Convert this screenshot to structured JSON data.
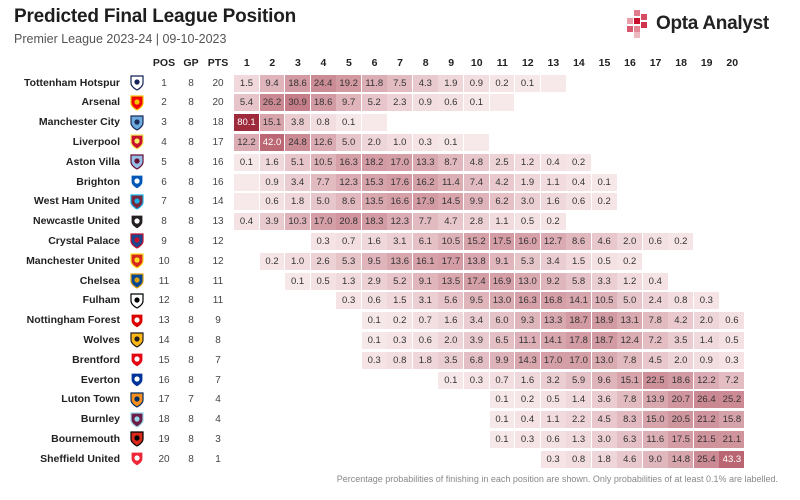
{
  "header": {
    "title": "Predicted Final League Position",
    "subtitle": "Premier League 2023-24 | 09-10-2023",
    "brand": "Opta Analyst"
  },
  "footnote": "Percentage probabilities of finishing in each position are shown. Only probabilities of at least 0.1% are labelled.",
  "colors": {
    "low": "#f8eaec",
    "high": "#9e2b3c",
    "text_dark": "#333333",
    "text_light": "#ffffff",
    "brand_accent": "#c8102e"
  },
  "chart_data": {
    "type": "heatmap",
    "title": "Predicted Final League Position",
    "stat_columns": [
      "POS",
      "GP",
      "PTS"
    ],
    "positions": [
      1,
      2,
      3,
      4,
      5,
      6,
      7,
      8,
      9,
      10,
      11,
      12,
      13,
      14,
      15,
      16,
      17,
      18,
      19,
      20
    ],
    "value_unit": "percent",
    "label_threshold": 0.1,
    "teams": [
      {
        "name": "Tottenham Hotspur",
        "crest": "tottenham-crest",
        "pos": 1,
        "gp": 8,
        "pts": 20,
        "probs": [
          1.5,
          9.4,
          18.6,
          24.4,
          19.2,
          11.8,
          7.5,
          4.3,
          1.9,
          0.9,
          0.2,
          0.1,
          0.05,
          null,
          null,
          null,
          null,
          null,
          null,
          null
        ]
      },
      {
        "name": "Arsenal",
        "crest": "arsenal-crest",
        "pos": 2,
        "gp": 8,
        "pts": 20,
        "probs": [
          5.4,
          26.2,
          30.9,
          18.6,
          9.7,
          5.2,
          2.3,
          0.9,
          0.6,
          0.1,
          0.05,
          null,
          null,
          null,
          null,
          null,
          null,
          null,
          null,
          null
        ]
      },
      {
        "name": "Manchester City",
        "crest": "man-city-crest",
        "pos": 3,
        "gp": 8,
        "pts": 18,
        "probs": [
          80.1,
          15.1,
          3.8,
          0.8,
          0.1,
          0.05,
          null,
          null,
          null,
          null,
          null,
          null,
          null,
          null,
          null,
          null,
          null,
          null,
          null,
          null
        ]
      },
      {
        "name": "Liverpool",
        "crest": "liverpool-crest",
        "pos": 4,
        "gp": 8,
        "pts": 17,
        "probs": [
          12.2,
          42.0,
          24.8,
          12.6,
          5.0,
          2.0,
          1.0,
          0.3,
          0.1,
          0.05,
          null,
          null,
          null,
          null,
          null,
          null,
          null,
          null,
          null,
          null
        ]
      },
      {
        "name": "Aston Villa",
        "crest": "aston-villa-crest",
        "pos": 5,
        "gp": 8,
        "pts": 16,
        "probs": [
          0.1,
          1.6,
          5.1,
          10.5,
          16.3,
          18.2,
          17.0,
          13.3,
          8.7,
          4.8,
          2.5,
          1.2,
          0.4,
          0.2,
          null,
          null,
          null,
          null,
          null,
          null
        ]
      },
      {
        "name": "Brighton",
        "crest": "brighton-crest",
        "pos": 6,
        "gp": 8,
        "pts": 16,
        "probs": [
          0.05,
          0.9,
          3.4,
          7.7,
          12.3,
          15.3,
          17.6,
          16.2,
          11.4,
          7.4,
          4.2,
          1.9,
          1.1,
          0.4,
          0.1,
          null,
          null,
          null,
          null,
          null
        ]
      },
      {
        "name": "West Ham United",
        "crest": "west-ham-crest",
        "pos": 7,
        "gp": 8,
        "pts": 14,
        "probs": [
          0.05,
          0.6,
          1.8,
          5.0,
          8.6,
          13.5,
          16.6,
          17.9,
          14.5,
          9.9,
          6.2,
          3.0,
          1.6,
          0.6,
          0.2,
          null,
          null,
          null,
          null,
          null
        ]
      },
      {
        "name": "Newcastle United",
        "crest": "newcastle-crest",
        "pos": 8,
        "gp": 8,
        "pts": 13,
        "probs": [
          0.4,
          3.9,
          10.3,
          17.0,
          20.8,
          18.3,
          12.3,
          7.7,
          4.7,
          2.8,
          1.1,
          0.5,
          0.2,
          null,
          null,
          null,
          null,
          null,
          null,
          null
        ]
      },
      {
        "name": "Crystal Palace",
        "crest": "crystal-palace-crest",
        "pos": 9,
        "gp": 8,
        "pts": 12,
        "probs": [
          null,
          null,
          null,
          0.3,
          0.7,
          1.6,
          3.1,
          6.1,
          10.5,
          15.2,
          17.5,
          16.0,
          12.7,
          8.6,
          4.6,
          2.0,
          0.6,
          0.2,
          null,
          null
        ]
      },
      {
        "name": "Manchester United",
        "crest": "man-united-crest",
        "pos": 10,
        "gp": 8,
        "pts": 12,
        "probs": [
          null,
          0.2,
          1.0,
          2.6,
          5.3,
          9.5,
          13.6,
          16.1,
          17.7,
          13.8,
          9.1,
          5.3,
          3.4,
          1.5,
          0.5,
          0.2,
          null,
          null,
          null,
          null
        ]
      },
      {
        "name": "Chelsea",
        "crest": "chelsea-crest",
        "pos": 11,
        "gp": 8,
        "pts": 11,
        "probs": [
          null,
          null,
          0.1,
          0.5,
          1.3,
          2.9,
          5.2,
          9.1,
          13.5,
          17.4,
          16.9,
          13.0,
          9.2,
          5.8,
          3.3,
          1.2,
          0.4,
          null,
          null,
          null
        ]
      },
      {
        "name": "Fulham",
        "crest": "fulham-crest",
        "pos": 12,
        "gp": 8,
        "pts": 11,
        "probs": [
          null,
          null,
          null,
          null,
          0.3,
          0.6,
          1.5,
          3.1,
          5.6,
          9.5,
          13.0,
          16.3,
          16.8,
          14.1,
          10.5,
          5.0,
          2.4,
          0.8,
          0.3,
          null
        ]
      },
      {
        "name": "Nottingham Forest",
        "crest": "nottingham-forest-crest",
        "pos": 13,
        "gp": 8,
        "pts": 9,
        "probs": [
          null,
          null,
          null,
          null,
          null,
          0.1,
          0.2,
          0.7,
          1.6,
          3.4,
          6.0,
          9.3,
          13.3,
          18.7,
          18.9,
          13.1,
          7.8,
          4.2,
          2.0,
          0.6
        ]
      },
      {
        "name": "Wolves",
        "crest": "wolves-crest",
        "pos": 14,
        "gp": 8,
        "pts": 8,
        "probs": [
          null,
          null,
          null,
          null,
          null,
          0.1,
          0.3,
          0.6,
          2.0,
          3.9,
          6.5,
          11.1,
          14.1,
          17.8,
          18.7,
          12.4,
          7.2,
          3.5,
          1.4,
          0.5
        ]
      },
      {
        "name": "Brentford",
        "crest": "brentford-crest",
        "pos": 15,
        "gp": 8,
        "pts": 7,
        "probs": [
          null,
          null,
          null,
          null,
          null,
          0.3,
          0.8,
          1.8,
          3.5,
          6.8,
          9.9,
          14.3,
          17.0,
          17.0,
          13.0,
          7.8,
          4.5,
          2.0,
          0.9,
          0.3
        ]
      },
      {
        "name": "Everton",
        "crest": "everton-crest",
        "pos": 16,
        "gp": 8,
        "pts": 7,
        "probs": [
          null,
          null,
          null,
          null,
          null,
          null,
          null,
          null,
          0.1,
          0.3,
          0.7,
          1.6,
          3.2,
          5.9,
          9.6,
          15.1,
          22.5,
          18.6,
          12.2,
          7.2
        ]
      },
      {
        "name": "Luton Town",
        "crest": "luton-town-crest",
        "pos": 17,
        "gp": 7,
        "pts": 4,
        "probs": [
          null,
          null,
          null,
          null,
          null,
          null,
          null,
          null,
          null,
          null,
          0.1,
          0.2,
          0.5,
          1.4,
          3.6,
          7.8,
          13.9,
          20.7,
          26.4,
          25.2
        ]
      },
      {
        "name": "Burnley",
        "crest": "burnley-crest",
        "pos": 18,
        "gp": 8,
        "pts": 4,
        "probs": [
          null,
          null,
          null,
          null,
          null,
          null,
          null,
          null,
          null,
          null,
          0.1,
          0.4,
          1.1,
          2.2,
          4.5,
          8.3,
          15.0,
          20.5,
          21.2,
          15.8
        ]
      },
      {
        "name": "Bournemouth",
        "crest": "bournemouth-crest",
        "pos": 19,
        "gp": 8,
        "pts": 3,
        "probs": [
          null,
          null,
          null,
          null,
          null,
          null,
          null,
          null,
          null,
          null,
          0.1,
          0.3,
          0.6,
          1.3,
          3.0,
          6.3,
          11.6,
          17.5,
          21.5,
          21.1
        ]
      },
      {
        "name": "Sheffield United",
        "crest": "sheffield-united-crest",
        "pos": 20,
        "gp": 8,
        "pts": 1,
        "probs": [
          null,
          null,
          null,
          null,
          null,
          null,
          null,
          null,
          null,
          null,
          null,
          null,
          0.3,
          0.8,
          1.8,
          4.6,
          9.0,
          14.8,
          25.4,
          43.3
        ]
      }
    ]
  }
}
